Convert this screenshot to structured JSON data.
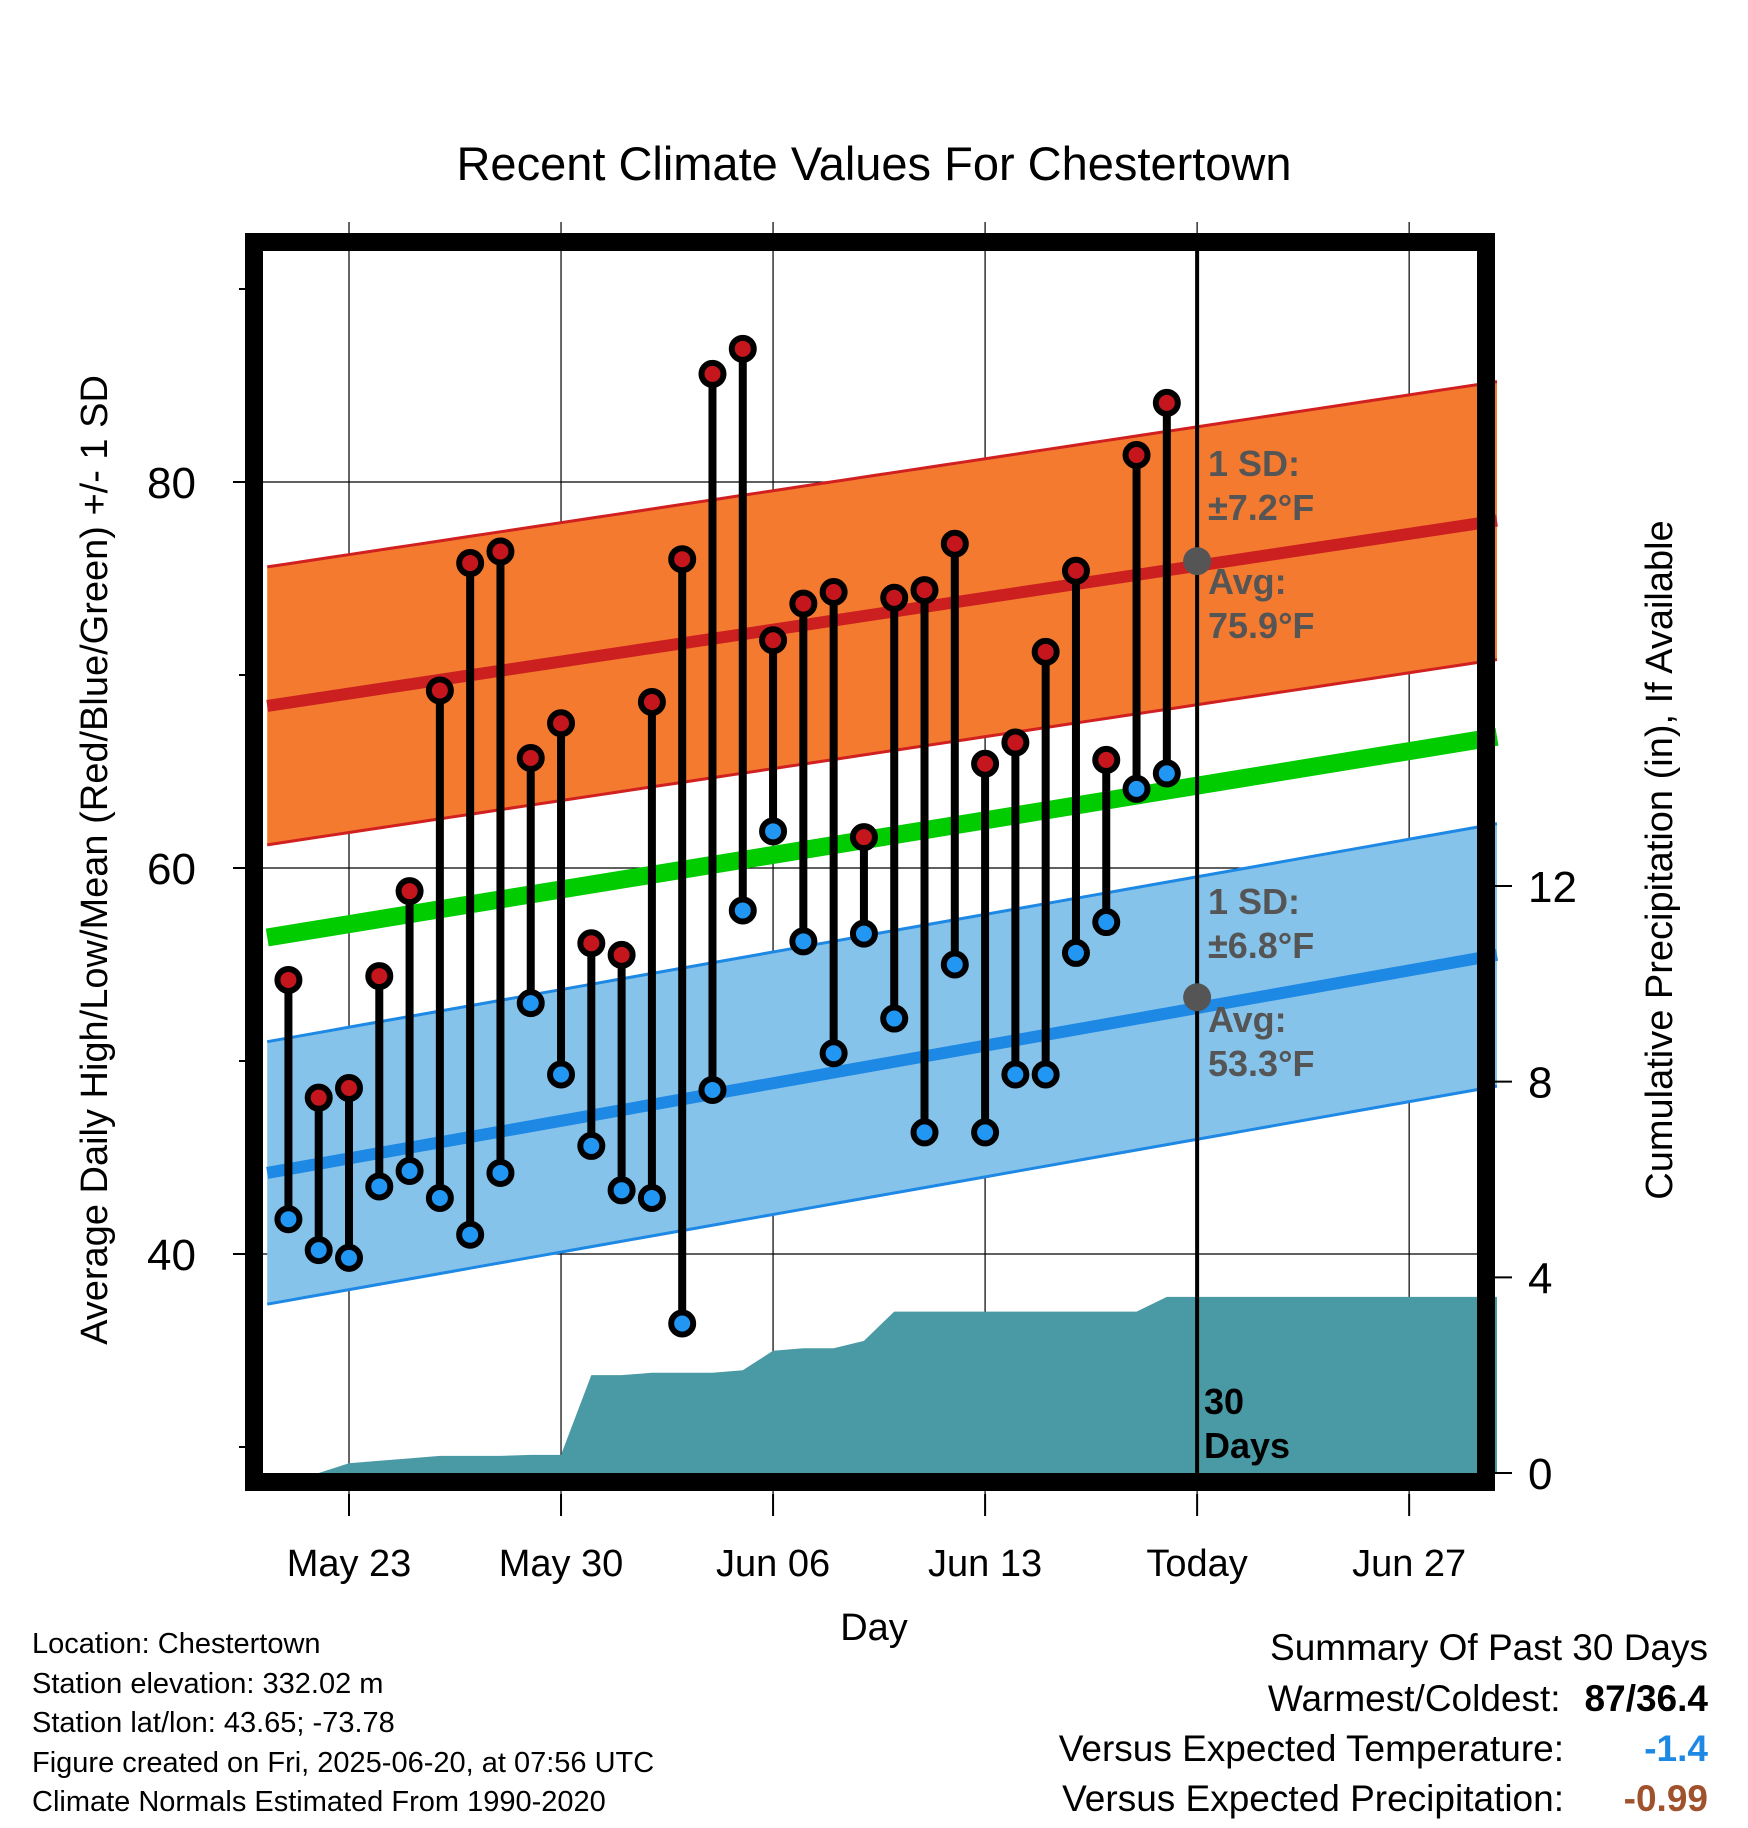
{
  "chart_data": {
    "type": "line",
    "title": "Recent Climate Values For Chestertown",
    "xlabel": "Day",
    "ylabel": "Average Daily High/Low/Mean (Red/Blue/Green) +/- 1 SD",
    "y2label": "Cumulative Precipitation (in), If Available",
    "ylim": [
      29,
      93
    ],
    "y2lim": [
      0,
      30
    ],
    "yticks": [
      40,
      60,
      80
    ],
    "y2ticks": [
      0,
      4,
      8,
      12
    ],
    "xticks": [
      "May 23",
      "May 30",
      "Jun 06",
      "Jun 13",
      "Today",
      "Jun 27"
    ],
    "today_index": 30,
    "x_range": [
      -2.7,
      37.9
    ],
    "grid": true,
    "series": [
      {
        "name": "High",
        "color": "#c4161c",
        "values": [
          54.2,
          48.1,
          48.6,
          54.4,
          58.8,
          69.2,
          75.8,
          76.4,
          65.7,
          67.5,
          56.1,
          55.5,
          68.6,
          76.0,
          85.6,
          86.9,
          71.8,
          73.7,
          74.3,
          61.6,
          74.0,
          74.4,
          76.8,
          65.4,
          66.5,
          71.2,
          75.4,
          65.6,
          81.4,
          84.1
        ]
      },
      {
        "name": "Low",
        "color": "#2196f3",
        "values": [
          41.8,
          40.2,
          39.8,
          43.5,
          44.3,
          42.9,
          41.0,
          44.2,
          53.0,
          49.3,
          45.6,
          43.3,
          42.9,
          36.4,
          48.5,
          57.8,
          61.9,
          56.2,
          50.4,
          56.6,
          52.2,
          46.3,
          55.0,
          46.3,
          49.3,
          49.3,
          55.6,
          57.2,
          64.1,
          64.9
        ]
      },
      {
        "name": "Normal High",
        "color": "#cc2020",
        "start": 68.4,
        "end": 78.0
      },
      {
        "name": "Normal Low",
        "color": "#1e88e5",
        "start": 44.2,
        "end": 55.5
      },
      {
        "name": "Normal Mean",
        "color": "#00cc00",
        "start": 56.4,
        "end": 66.8
      },
      {
        "name": "Cumulative Precipitation",
        "color": "#4a9aa5",
        "values": [
          0.0,
          0.0,
          0.2,
          0.25,
          0.3,
          0.35,
          0.35,
          0.35,
          0.37,
          0.37,
          2.0,
          2.0,
          2.05,
          2.05,
          2.05,
          2.1,
          2.5,
          2.55,
          2.55,
          2.7,
          3.3,
          3.3,
          3.3,
          3.3,
          3.3,
          3.3,
          3.3,
          3.3,
          3.3,
          3.6,
          3.6,
          3.6,
          3.6,
          3.6,
          3.6,
          3.6,
          3.6,
          3.6,
          3.6,
          3.6
        ]
      }
    ],
    "annotations": {
      "high_sd": {
        "line1": "1 SD:",
        "line2": "±7.2°F",
        "avg_label": "Avg:",
        "avg_value": "75.9°F",
        "avg": 75.9,
        "sd": 7.2
      },
      "low_sd": {
        "line1": "1 SD:",
        "line2": "±6.8°F",
        "avg_label": "Avg:",
        "avg_value": "53.3°F",
        "avg": 53.3,
        "sd": 6.8
      },
      "days_label_1": "30",
      "days_label_2": "Days"
    }
  },
  "footer": {
    "location": "Location: Chestertown",
    "elevation": "Station elevation: 332.02 m",
    "latlon": "Station lat/lon: 43.65; -73.78",
    "created": "Figure created on Fri, 2025-06-20, at 07:56 UTC",
    "normals": "Climate Normals Estimated From 1990-2020"
  },
  "summary": {
    "title": "Summary Of Past 30 Days",
    "warm_cold_label": "Warmest/Coldest:",
    "warm_cold_value": "87/36.4",
    "temp_label": "Versus Expected Temperature:",
    "temp_value": "-1.4",
    "temp_color": "#1e88e5",
    "precip_label": "Versus Expected Precipitation:",
    "precip_value": "-0.99",
    "precip_color": "#a0522d"
  }
}
